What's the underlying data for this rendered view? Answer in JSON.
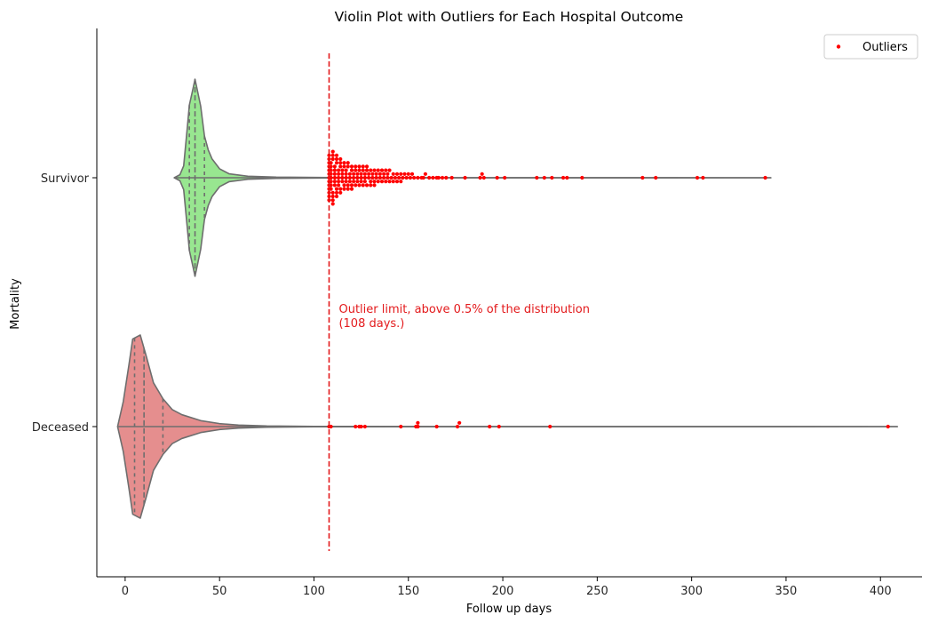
{
  "chart_data": {
    "type": "violin",
    "title": "Violin Plot with Outliers for Each Hospital Outcome",
    "xlabel": "Follow up days",
    "ylabel": "Mortality",
    "xlim": [
      -15,
      422
    ],
    "xticks": [
      0,
      50,
      100,
      150,
      200,
      250,
      300,
      350,
      400
    ],
    "categories": [
      "Survivor",
      "Deceased"
    ],
    "legend": {
      "placement": "top-right",
      "entries": [
        "Outliers"
      ]
    },
    "grid": false,
    "colors": {
      "Survivor": "#98e690",
      "Deceased": "#e58e8e",
      "outline": "#6e6e6e",
      "outlier": "#ff0000",
      "limit_line": "#e31a1c"
    },
    "outlier_limit": {
      "x": 108,
      "label_line1": "Outlier limit, above 0.5% of the distribution",
      "label_line2": "(108 days.)"
    },
    "series": [
      {
        "name": "Survivor",
        "quartiles": [
          34,
          37,
          42
        ],
        "max": 342,
        "profile": [
          [
            26,
            0
          ],
          [
            29,
            0.03
          ],
          [
            31,
            0.12
          ],
          [
            33,
            0.52
          ],
          [
            34,
            0.73
          ],
          [
            36,
            0.9
          ],
          [
            37,
            0.99
          ],
          [
            38,
            0.9
          ],
          [
            40,
            0.72
          ],
          [
            42,
            0.42
          ],
          [
            44,
            0.28
          ],
          [
            46,
            0.19
          ],
          [
            50,
            0.09
          ],
          [
            55,
            0.04
          ],
          [
            65,
            0.015
          ],
          [
            80,
            0.006
          ],
          [
            110,
            0.002
          ],
          [
            200,
            0.0006
          ],
          [
            342,
            0
          ]
        ],
        "outliers": [
          108,
          108,
          108,
          108,
          108,
          108,
          108,
          108,
          108,
          108,
          108,
          108,
          108,
          109,
          109,
          109,
          109,
          109,
          109,
          109,
          109,
          110,
          110,
          110,
          110,
          110,
          110,
          110,
          111,
          111,
          111,
          111,
          111,
          111,
          112,
          112,
          112,
          112,
          112,
          112,
          113,
          113,
          113,
          113,
          113,
          114,
          114,
          114,
          114,
          114,
          115,
          115,
          115,
          115,
          116,
          116,
          116,
          116,
          117,
          117,
          117,
          117,
          118,
          118,
          118,
          118,
          119,
          119,
          119,
          120,
          120,
          120,
          120,
          121,
          121,
          121,
          122,
          122,
          122,
          123,
          123,
          123,
          124,
          124,
          124,
          125,
          125,
          125,
          126,
          126,
          126,
          127,
          127,
          127,
          128,
          128,
          128,
          129,
          129,
          130,
          130,
          130,
          131,
          131,
          132,
          132,
          132,
          133,
          133,
          134,
          134,
          135,
          135,
          136,
          136,
          137,
          137,
          138,
          138,
          139,
          139,
          140,
          140,
          141,
          142,
          142,
          143,
          144,
          144,
          145,
          146,
          146,
          147,
          148,
          149,
          150,
          151,
          152,
          153,
          155,
          157,
          158,
          159,
          161,
          163,
          165,
          166,
          168,
          170,
          173,
          180,
          188,
          189,
          190,
          197,
          201,
          218,
          222,
          226,
          232,
          234,
          242,
          274,
          281,
          303,
          306,
          339
        ]
      },
      {
        "name": "Deceased",
        "quartiles": [
          5,
          10,
          20
        ],
        "max": 409,
        "profile": [
          [
            -4,
            0
          ],
          [
            -1,
            0.25
          ],
          [
            2,
            0.62
          ],
          [
            4,
            0.88
          ],
          [
            8,
            0.92
          ],
          [
            11,
            0.72
          ],
          [
            15,
            0.44
          ],
          [
            20,
            0.28
          ],
          [
            25,
            0.17
          ],
          [
            30,
            0.12
          ],
          [
            40,
            0.06
          ],
          [
            50,
            0.03
          ],
          [
            60,
            0.015
          ],
          [
            75,
            0.006
          ],
          [
            100,
            0.002
          ],
          [
            200,
            0.0008
          ],
          [
            409,
            0
          ]
        ],
        "outliers": [
          108,
          109,
          122,
          124,
          125,
          127,
          146,
          154,
          155,
          155,
          165,
          176,
          177,
          193,
          198,
          225,
          404
        ]
      }
    ]
  }
}
